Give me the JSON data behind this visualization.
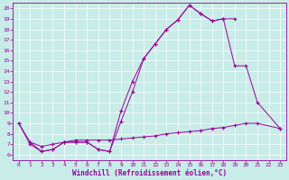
{
  "xlabel": "Windchill (Refroidissement éolien,°C)",
  "bg_color": "#c8ece8",
  "line_color": "#990099",
  "grid_color": "#b0d8d4",
  "xlim": [
    -0.5,
    23.5
  ],
  "ylim": [
    5.5,
    20.5
  ],
  "xticks": [
    0,
    1,
    2,
    3,
    4,
    5,
    6,
    7,
    8,
    9,
    10,
    11,
    12,
    13,
    14,
    15,
    16,
    17,
    18,
    19,
    20,
    21,
    22,
    23
  ],
  "yticks": [
    6,
    7,
    8,
    9,
    10,
    11,
    12,
    13,
    14,
    15,
    16,
    17,
    18,
    19,
    20
  ],
  "line1_x": [
    0,
    1,
    2,
    3,
    4,
    5,
    6,
    7,
    8,
    9,
    10,
    11,
    12,
    13,
    14,
    15,
    16,
    17,
    18,
    19
  ],
  "line1_y": [
    9.0,
    7.0,
    6.3,
    6.5,
    7.2,
    7.2,
    7.2,
    6.5,
    6.3,
    10.2,
    13.0,
    15.2,
    16.6,
    18.0,
    18.9,
    20.3,
    19.5,
    18.8,
    19.0,
    19.0
  ],
  "line2_x": [
    1,
    2,
    3,
    4,
    5,
    6,
    7,
    8,
    9,
    10,
    11,
    12,
    13,
    14,
    15,
    16,
    17,
    18,
    19,
    20,
    21,
    23
  ],
  "line2_y": [
    7.2,
    6.8,
    7.0,
    7.2,
    7.4,
    7.4,
    7.4,
    7.4,
    7.5,
    7.6,
    7.7,
    7.8,
    8.0,
    8.1,
    8.2,
    8.3,
    8.5,
    8.6,
    8.8,
    9.0,
    9.0,
    8.5
  ],
  "line3_x": [
    0,
    1,
    2,
    3,
    4,
    5,
    6,
    7,
    8,
    9,
    10,
    11,
    12,
    13,
    14,
    15,
    16,
    17,
    18,
    19,
    20,
    21,
    23
  ],
  "line3_y": [
    9.0,
    7.2,
    6.3,
    6.5,
    7.2,
    7.2,
    7.2,
    6.5,
    6.3,
    9.2,
    12.0,
    15.2,
    16.6,
    18.0,
    18.9,
    20.3,
    19.5,
    18.8,
    19.0,
    14.5,
    14.5,
    11.0,
    8.5
  ]
}
